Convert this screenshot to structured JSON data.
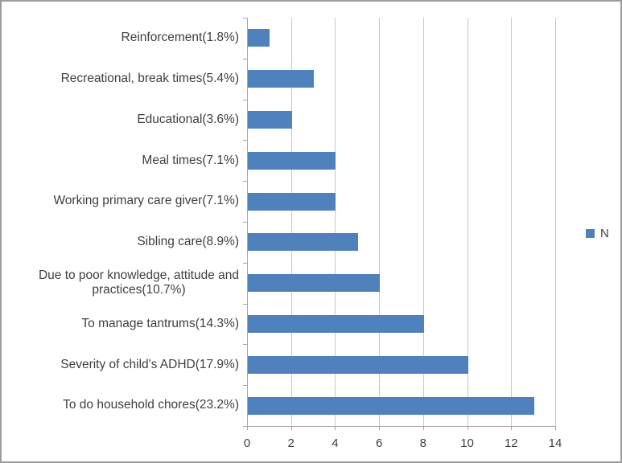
{
  "chart_data": {
    "type": "bar",
    "orientation": "horizontal",
    "title": "",
    "xlabel": "",
    "ylabel": "",
    "categories": [
      "Reinforcement(1.8%)",
      "Recreational, break times(5.4%)",
      "Educational(3.6%)",
      "Meal times(7.1%)",
      "Working primary care giver(7.1%)",
      "Sibling care(8.9%)",
      "Due to poor knowledge, attitude and\npractices(10.7%)",
      "To manage tantrums(14.3%)",
      "Severity of child's ADHD(17.9%)",
      "To do household chores(23.2%)"
    ],
    "series": [
      {
        "name": "N",
        "values": [
          1,
          3,
          2,
          4,
          4,
          5,
          6,
          8,
          10,
          13
        ]
      }
    ],
    "xlim": [
      0,
      14
    ],
    "xticks": [
      0,
      2,
      4,
      6,
      8,
      10,
      12,
      14
    ],
    "grid": true,
    "legend": {
      "label": "N",
      "position": "right"
    },
    "colors": {
      "bar": "#4f81bd",
      "gridline": "#c8c8c8",
      "axis": "#a6a6a6",
      "text": "#3f3f3f",
      "frame_border": "#9c9c9c"
    }
  }
}
